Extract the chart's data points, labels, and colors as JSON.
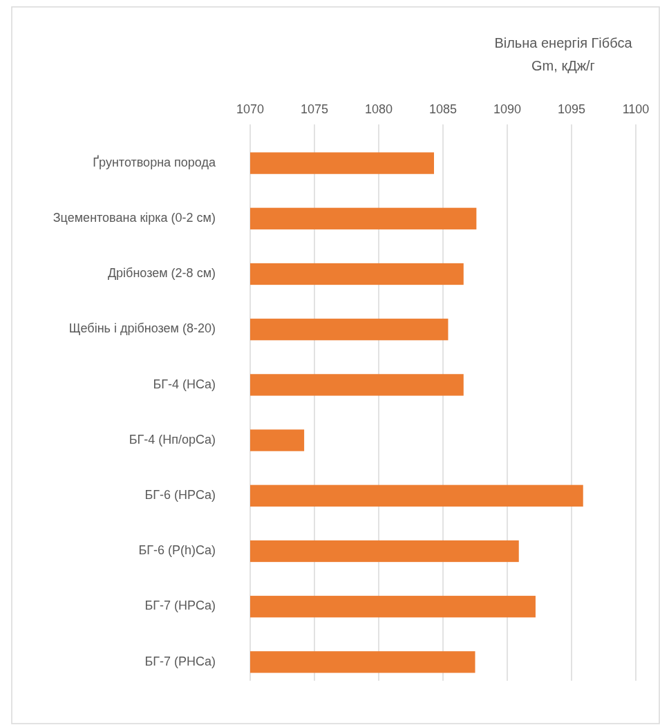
{
  "chart_data": {
    "type": "bar",
    "orientation": "horizontal",
    "title": "Вільна енергія Гіббса\nGm, кДж/г",
    "categories": [
      "Ґрунтотворна порода",
      "Зцементована кірка (0-2 см)",
      "Дрібнозем (2-8 см)",
      "Щебінь і дрібнозем (8-20)",
      "БГ-4 (HCa)",
      "БГ-4 (Hп/орCa)",
      "БГ-6 (HPCa)",
      "БГ-6 (P(h)Ca)",
      "БГ-7 (HPCa)",
      "БГ-7 (PHCa)"
    ],
    "values": [
      1084.3,
      1087.6,
      1086.6,
      1085.4,
      1086.6,
      1074.2,
      1095.9,
      1090.9,
      1092.2,
      1087.5
    ],
    "color": "#ed7d31",
    "xlim": [
      1070,
      1100
    ],
    "xticks": [
      1070,
      1075,
      1080,
      1085,
      1090,
      1095,
      1100
    ],
    "grid": true
  }
}
